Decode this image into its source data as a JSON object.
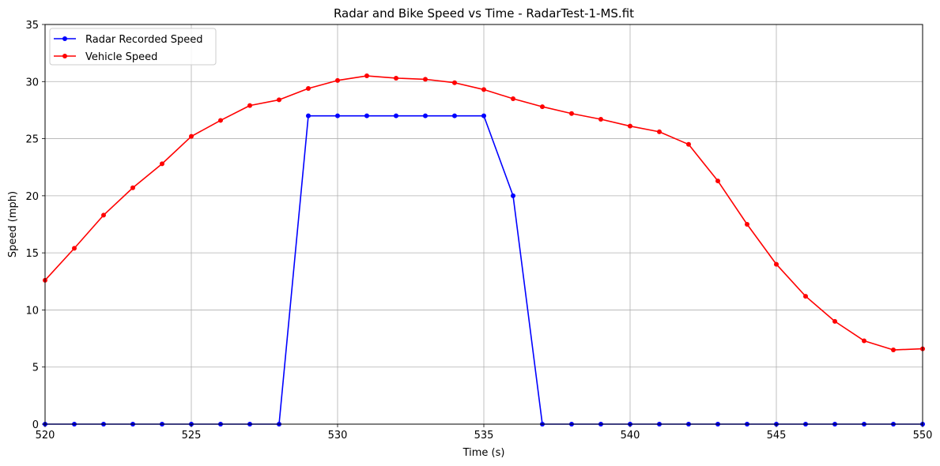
{
  "chart_data": {
    "type": "line",
    "title": "Radar and Bike Speed vs Time - RadarTest-1-MS.fit",
    "xlabel": "Time (s)",
    "ylabel": "Speed (mph)",
    "xlim": [
      520,
      550
    ],
    "ylim": [
      0,
      35
    ],
    "xticks": [
      "520",
      "525",
      "530",
      "535",
      "540",
      "545",
      "550"
    ],
    "yticks": [
      "0",
      "5",
      "10",
      "15",
      "20",
      "25",
      "30",
      "35"
    ],
    "grid": true,
    "legend_position": "top-left",
    "x": [
      520,
      521,
      522,
      523,
      524,
      525,
      526,
      527,
      528,
      529,
      530,
      531,
      532,
      533,
      534,
      535,
      536,
      537,
      538,
      539,
      540,
      541,
      542,
      543,
      544,
      545,
      546,
      547,
      548,
      549,
      550
    ],
    "series": [
      {
        "name": "Radar Recorded Speed",
        "color": "#0000ff",
        "values": [
          0,
          0,
          0,
          0,
          0,
          0,
          0,
          0,
          0,
          27,
          27,
          27,
          27,
          27,
          27,
          27,
          20,
          0,
          0,
          0,
          0,
          0,
          0,
          0,
          0,
          0,
          0,
          0,
          0,
          0,
          0
        ]
      },
      {
        "name": "Vehicle Speed",
        "color": "#ff0000",
        "values": [
          12.6,
          15.4,
          18.3,
          20.7,
          22.8,
          25.2,
          26.6,
          27.9,
          28.4,
          29.4,
          30.1,
          30.5,
          30.3,
          30.2,
          29.9,
          29.3,
          28.5,
          27.8,
          27.2,
          26.7,
          26.1,
          25.6,
          24.5,
          21.3,
          17.5,
          14.0,
          11.2,
          9.0,
          7.3,
          6.5,
          6.6
        ]
      }
    ]
  }
}
